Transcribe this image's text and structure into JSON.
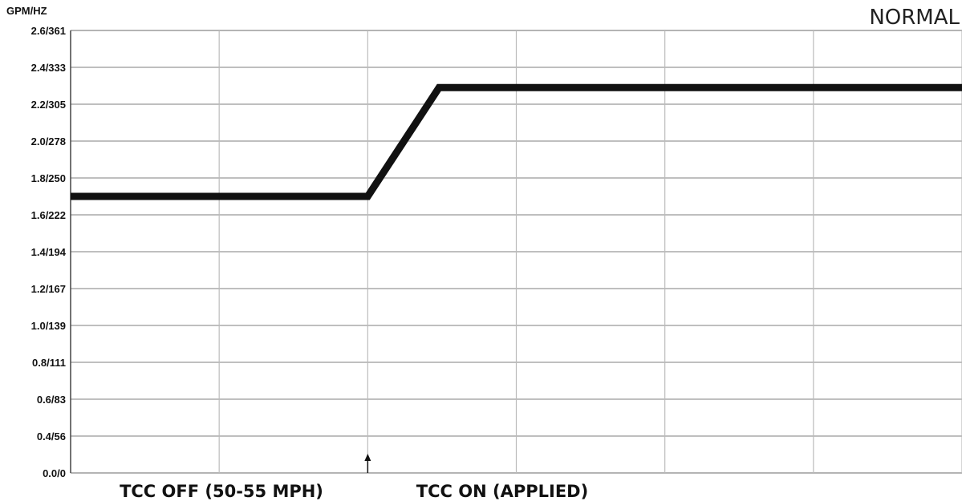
{
  "chart_data": {
    "type": "line",
    "mode_label": "NORMAL",
    "ylabel": "GPM/HZ",
    "y_ticks": [
      "0.0/0",
      "0.4/56",
      "0.6/83",
      "0.8/111",
      "1.0/139",
      "1.2/167",
      "1.4/194",
      "1.6/222",
      "1.8/250",
      "2.0/278",
      "2.2/305",
      "2.4/333",
      "2.6/361"
    ],
    "x_grid_divisions": 6,
    "grid": true,
    "series": [
      {
        "points": [
          {
            "x": 0.0,
            "y": 1.7
          },
          {
            "x": 2.0,
            "y": 1.7
          },
          {
            "x": 2.48,
            "y": 2.29
          },
          {
            "x": 6.0,
            "y": 2.29
          }
        ]
      }
    ],
    "event_marker": {
      "x": 2.0,
      "label": "TCC ON (APPLIED)"
    },
    "x_annotations": [
      "TCC OFF (50-55 MPH)",
      "TCC ON (APPLIED)"
    ]
  }
}
